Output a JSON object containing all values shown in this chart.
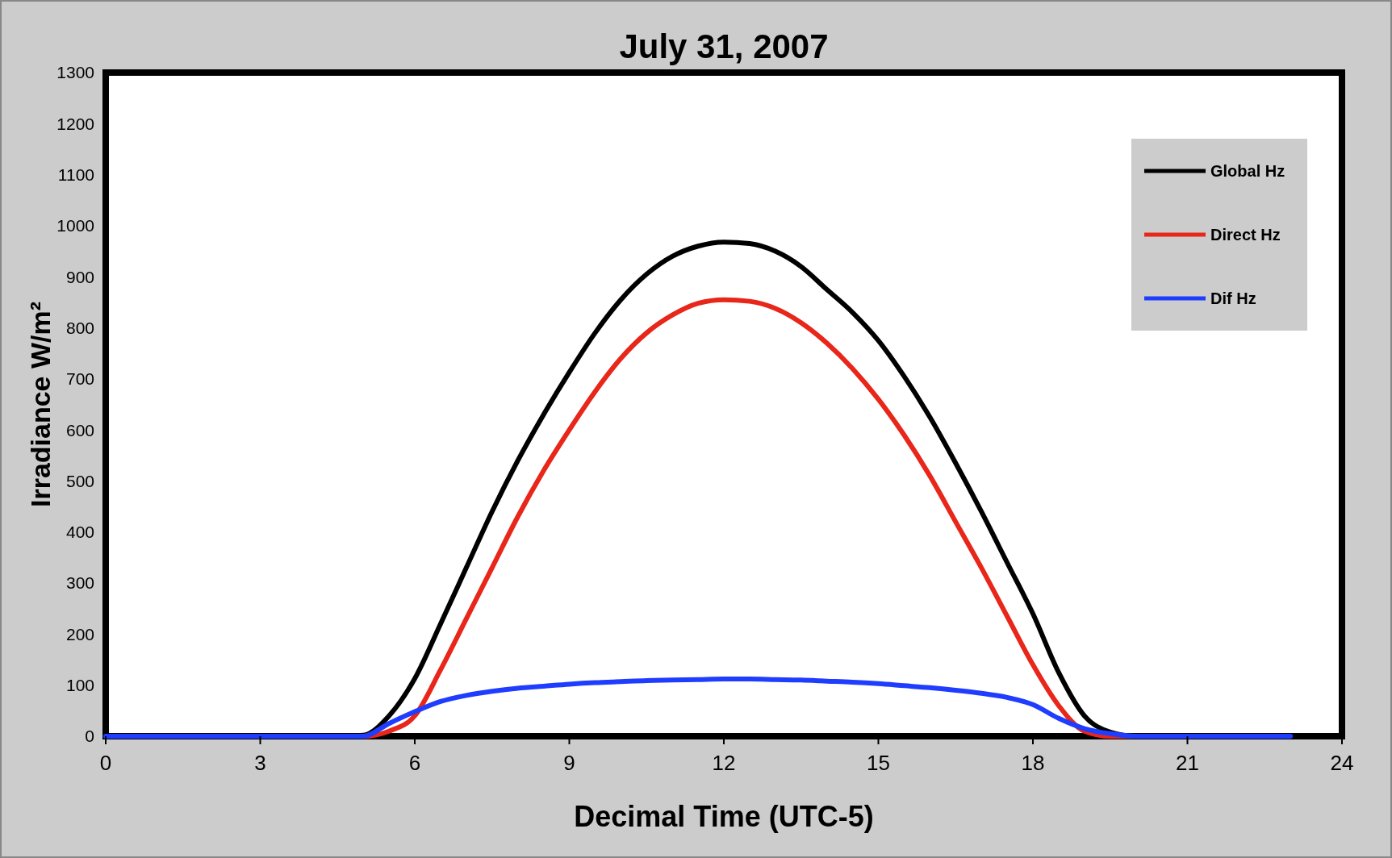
{
  "chart_data": {
    "type": "line",
    "title": "July 31, 2007",
    "xlabel": "Decimal Time (UTC-5)",
    "ylabel": "Irradiance W/m²",
    "x": [
      0,
      1,
      2,
      3,
      4,
      4.5,
      5,
      5.5,
      6,
      6.5,
      7,
      7.5,
      8,
      8.5,
      9,
      9.5,
      10,
      10.5,
      11,
      11.5,
      12,
      12.5,
      13,
      13.5,
      14,
      14.5,
      15,
      15.5,
      16,
      16.5,
      17,
      17.5,
      18,
      18.5,
      19,
      19.5,
      20,
      21,
      22,
      23
    ],
    "series": [
      {
        "name": "Global Hz",
        "color": "#000000",
        "values": [
          0,
          0,
          0,
          0,
          0,
          0,
          2,
          40,
          113,
          220,
          330,
          440,
          540,
          630,
          713,
          790,
          855,
          905,
          940,
          960,
          968,
          965,
          950,
          920,
          875,
          830,
          775,
          705,
          625,
          535,
          440,
          340,
          240,
          125,
          40,
          8,
          0,
          0,
          0,
          0
        ]
      },
      {
        "name": "Direct Hz",
        "color": "#e8261a",
        "values": [
          null,
          null,
          null,
          null,
          null,
          0,
          0,
          10,
          40,
          130,
          230,
          330,
          430,
          520,
          600,
          675,
          740,
          790,
          825,
          848,
          855,
          852,
          838,
          810,
          770,
          720,
          660,
          590,
          510,
          420,
          330,
          235,
          140,
          60,
          10,
          0,
          0,
          0,
          null,
          null
        ]
      },
      {
        "name": "Dif Hz",
        "color": "#1f3dff",
        "values": [
          0,
          0,
          0,
          0,
          0,
          0,
          0,
          25,
          48,
          68,
          80,
          88,
          94,
          98,
          102,
          105,
          107,
          109,
          110,
          111,
          112,
          112,
          111,
          110,
          108,
          106,
          103,
          99,
          95,
          90,
          84,
          76,
          62,
          35,
          15,
          5,
          0,
          0,
          0,
          0
        ]
      }
    ],
    "xlim": [
      0,
      24
    ],
    "xticks": [
      0,
      3,
      6,
      9,
      12,
      15,
      18,
      21,
      24
    ],
    "ylim": [
      0,
      1300
    ],
    "yticks": [
      0,
      100,
      200,
      300,
      400,
      500,
      600,
      700,
      800,
      900,
      1000,
      1100,
      1200,
      1300
    ],
    "grid": false,
    "legend": "top right",
    "marker": "none",
    "line_style": "solid"
  }
}
